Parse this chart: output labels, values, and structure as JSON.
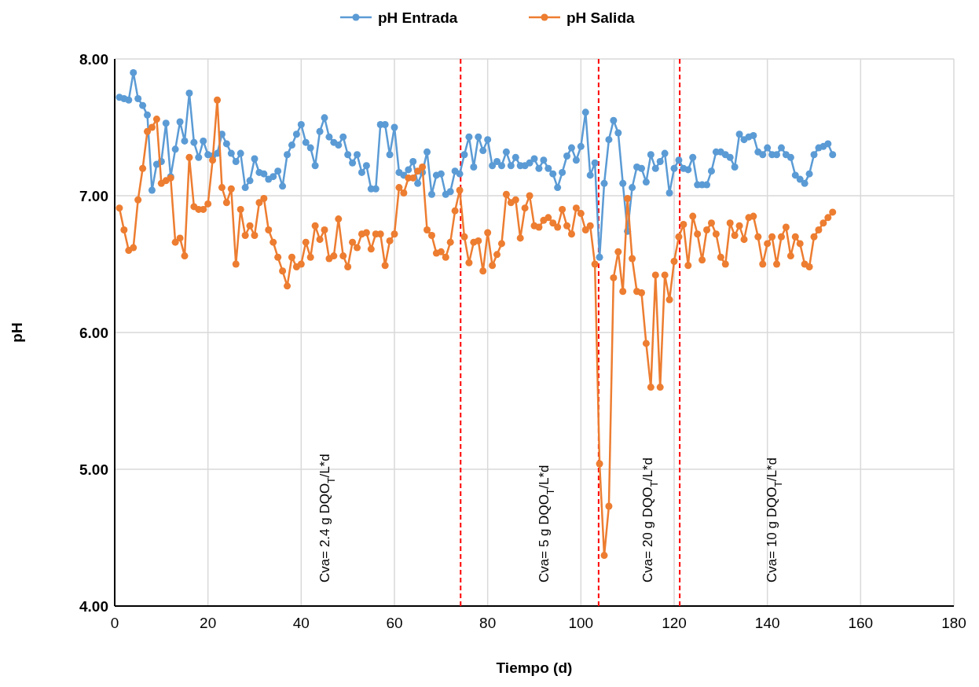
{
  "chart_data": {
    "type": "line",
    "xlabel": "Tiempo (d)",
    "ylabel": "pH",
    "x": [
      1,
      2,
      3,
      4,
      5,
      6,
      7,
      8,
      9,
      10,
      11,
      12,
      13,
      14,
      15,
      16,
      17,
      18,
      19,
      20,
      21,
      22,
      23,
      24,
      25,
      26,
      27,
      28,
      29,
      30,
      31,
      32,
      33,
      34,
      35,
      36,
      37,
      38,
      39,
      40,
      41,
      42,
      43,
      44,
      45,
      46,
      47,
      48,
      49,
      50,
      51,
      52,
      53,
      54,
      55,
      56,
      57,
      58,
      59,
      60,
      61,
      62,
      63,
      64,
      65,
      66,
      67,
      68,
      69,
      70,
      71,
      72,
      73,
      74,
      75,
      76,
      77,
      78,
      79,
      80,
      81,
      82,
      83,
      84,
      85,
      86,
      87,
      88,
      89,
      90,
      91,
      92,
      93,
      94,
      95,
      96,
      97,
      98,
      99,
      100,
      101,
      102,
      103,
      104,
      105,
      106,
      107,
      108,
      109,
      110,
      111,
      112,
      113,
      114,
      115,
      116,
      117,
      118,
      119,
      120,
      121,
      122,
      123,
      124,
      125,
      126,
      127,
      128,
      129,
      130,
      131,
      132,
      133,
      134,
      135,
      136,
      137,
      138,
      139,
      140,
      141,
      142,
      143,
      144,
      145,
      146,
      147,
      148,
      149,
      150,
      151,
      152,
      153,
      154
    ],
    "series": [
      {
        "name": "pH Entrada",
        "color": "#5b9bd5",
        "values": [
          7.72,
          7.71,
          7.7,
          7.9,
          7.71,
          7.66,
          7.59,
          7.04,
          7.23,
          7.25,
          7.53,
          7.14,
          7.34,
          7.54,
          7.4,
          7.75,
          7.39,
          7.28,
          7.4,
          7.3,
          7.29,
          7.31,
          7.45,
          7.38,
          7.31,
          7.25,
          7.31,
          7.06,
          7.11,
          7.27,
          7.17,
          7.16,
          7.12,
          7.14,
          7.18,
          7.07,
          7.3,
          7.37,
          7.45,
          7.52,
          7.39,
          7.35,
          7.22,
          7.47,
          7.57,
          7.43,
          7.39,
          7.37,
          7.43,
          7.3,
          7.24,
          7.3,
          7.17,
          7.22,
          7.05,
          7.05,
          7.52,
          7.52,
          7.3,
          7.5,
          7.17,
          7.15,
          7.19,
          7.25,
          7.09,
          7.17,
          7.32,
          7.01,
          7.15,
          7.16,
          7.01,
          7.03,
          7.18,
          7.16,
          7.3,
          7.43,
          7.21,
          7.43,
          7.33,
          7.41,
          7.22,
          7.25,
          7.22,
          7.32,
          7.22,
          7.28,
          7.22,
          7.22,
          7.24,
          7.27,
          7.2,
          7.26,
          7.2,
          7.16,
          7.06,
          7.17,
          7.29,
          7.35,
          7.26,
          7.36,
          7.61,
          7.15,
          7.24,
          6.55,
          7.09,
          7.41,
          7.55,
          7.46,
          7.09,
          6.74,
          7.06,
          7.21,
          7.2,
          7.1,
          7.3,
          7.2,
          7.25,
          7.31,
          7.02,
          7.2,
          7.26,
          7.2,
          7.19,
          7.28,
          7.08,
          7.08,
          7.08,
          7.18,
          7.32,
          7.32,
          7.3,
          7.28,
          7.21,
          7.45,
          7.41,
          7.43,
          7.44,
          7.32,
          7.3,
          7.35,
          7.3,
          7.3,
          7.35,
          7.3,
          7.28,
          7.15,
          7.12,
          7.09,
          7.16,
          7.3,
          7.35,
          7.36,
          7.38,
          7.3
        ]
      },
      {
        "name": "pH Salida",
        "color": "#ed7d31",
        "values": [
          6.91,
          6.75,
          6.6,
          6.62,
          6.97,
          7.2,
          7.47,
          7.5,
          7.56,
          7.09,
          7.11,
          7.13,
          6.66,
          6.69,
          6.56,
          7.28,
          6.92,
          6.9,
          6.9,
          6.94,
          7.26,
          7.7,
          7.06,
          6.95,
          7.05,
          6.5,
          6.9,
          6.71,
          6.78,
          6.71,
          6.95,
          6.98,
          6.75,
          6.66,
          6.55,
          6.45,
          6.34,
          6.55,
          6.48,
          6.5,
          6.66,
          6.55,
          6.78,
          6.68,
          6.75,
          6.54,
          6.56,
          6.83,
          6.56,
          6.48,
          6.66,
          6.62,
          6.72,
          6.73,
          6.61,
          6.72,
          6.72,
          6.49,
          6.67,
          6.72,
          7.06,
          7.02,
          7.13,
          7.13,
          7.18,
          7.21,
          6.75,
          6.71,
          6.58,
          6.59,
          6.55,
          6.66,
          6.89,
          7.04,
          6.7,
          6.51,
          6.66,
          6.67,
          6.45,
          6.73,
          6.49,
          6.57,
          6.65,
          7.01,
          6.95,
          6.97,
          6.69,
          6.91,
          7.0,
          6.78,
          6.77,
          6.82,
          6.84,
          6.8,
          6.77,
          6.9,
          6.78,
          6.72,
          6.91,
          6.87,
          6.75,
          6.78,
          6.5,
          5.04,
          4.37,
          4.73,
          6.4,
          6.59,
          6.3,
          6.98,
          6.54,
          6.3,
          6.29,
          5.92,
          5.6,
          6.42,
          5.6,
          6.42,
          6.24,
          6.52,
          6.7,
          6.79,
          6.49,
          6.85,
          6.72,
          6.53,
          6.75,
          6.8,
          6.72,
          6.55,
          6.5,
          6.8,
          6.71,
          6.78,
          6.68,
          6.84,
          6.85,
          6.7,
          6.5,
          6.65,
          6.7,
          6.5,
          6.7,
          6.77,
          6.56,
          6.7,
          6.65,
          6.5,
          6.48,
          6.7,
          6.75,
          6.8,
          6.84,
          6.88
        ]
      }
    ],
    "xlim": [
      0,
      180
    ],
    "xticks": [
      0,
      20,
      40,
      60,
      80,
      100,
      120,
      140,
      160,
      180
    ],
    "ylim": [
      4,
      8
    ],
    "yticks": [
      {
        "value": 4,
        "label": "4.00"
      },
      {
        "value": 5,
        "label": "5.00"
      },
      {
        "value": 6,
        "label": "6.00"
      },
      {
        "value": 7,
        "label": "7.00"
      },
      {
        "value": 8,
        "label": "8.00"
      }
    ],
    "grid": true,
    "legend": "top",
    "marker": "circle",
    "line_style": "solid",
    "ref_lines": [
      {
        "axis": "x",
        "value": 74.2,
        "color": "#ff0000",
        "line_style": "dashed"
      },
      {
        "axis": "x",
        "value": 103.8,
        "color": "#ff0000",
        "line_style": "dashed"
      },
      {
        "axis": "x",
        "value": 121.2,
        "color": "#ff0000",
        "line_style": "dashed"
      }
    ],
    "annotations": [
      "Cva= 2.4 g DQO$_{T}$/L*d",
      "Cva= 5 g DQO$_{T}$/L*d",
      "Cva= 20 g DQO$_{T}$/L*d",
      "Cva= 10 g DQO$_{T}$/L*d"
    ]
  }
}
